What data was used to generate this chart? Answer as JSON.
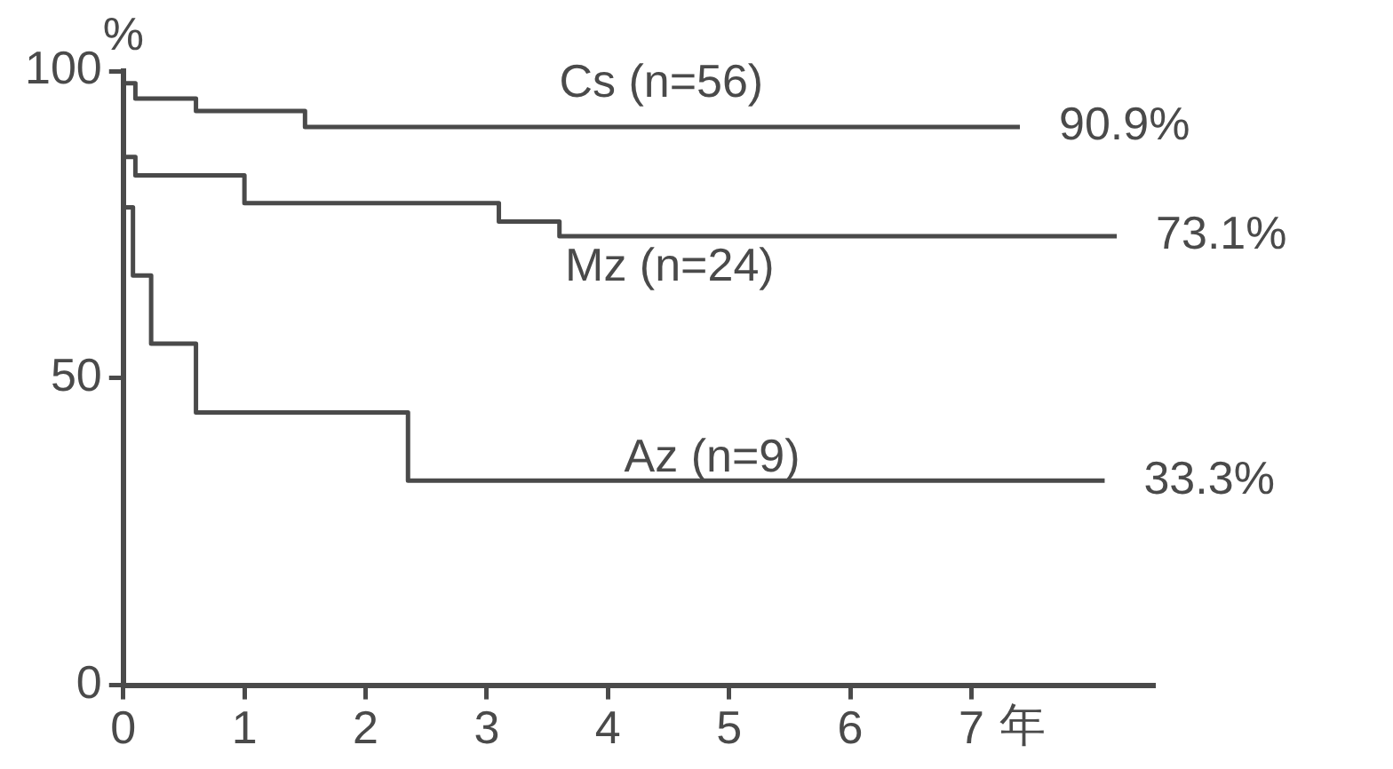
{
  "chart_data": {
    "type": "step",
    "xlabel": "年",
    "ylabel": "%",
    "xlim": [
      0,
      8.5
    ],
    "xticks": [
      0,
      1,
      2,
      3,
      4,
      5,
      6,
      7
    ],
    "ylim": [
      0,
      100
    ],
    "yticks": [
      0,
      50,
      100
    ],
    "grid": false,
    "legend": false,
    "marker": "none",
    "line_style": "solid",
    "series": [
      {
        "name": "Cs (n=56)",
        "color": "#4a4a4a",
        "x": [
          0,
          0.1,
          0.6,
          1.5,
          2.0,
          7.4
        ],
        "values": [
          100,
          98,
          95.5,
          93.5,
          90.9,
          90.9
        ],
        "value_labels": [
          null,
          null,
          null,
          null,
          null,
          "90.9%"
        ]
      },
      {
        "name": "Mz (n=24)",
        "color": "#4a4a4a",
        "x": [
          0,
          0.1,
          1.0,
          3.1,
          3.6,
          6.7,
          8.2
        ],
        "values": [
          100,
          86,
          83,
          78.5,
          75.5,
          73.1,
          73.1
        ],
        "value_labels": [
          null,
          null,
          null,
          null,
          null,
          null,
          "73.1%"
        ]
      },
      {
        "name": "Az (n=9)",
        "color": "#4a4a4a",
        "x": [
          0,
          0.08,
          0.23,
          0.6,
          2.35,
          6.7,
          8.1
        ],
        "values": [
          100,
          77.8,
          66.7,
          55.6,
          44.4,
          33.3,
          33.3
        ],
        "value_labels": [
          null,
          null,
          null,
          null,
          null,
          null,
          "33.3%"
        ]
      }
    ]
  }
}
